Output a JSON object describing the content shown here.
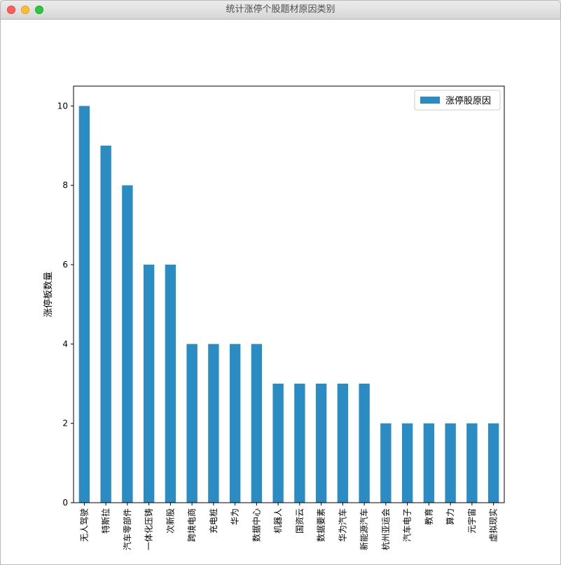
{
  "window": {
    "title": "统计涨停个股题材原因类别"
  },
  "colors": {
    "bar": "#2b8cc4",
    "axis": "#000000"
  },
  "chart_data": {
    "type": "bar",
    "title": "",
    "xlabel": "",
    "ylabel": "涨停板数量",
    "ylim": [
      0,
      10.5
    ],
    "yticks": [
      0,
      2,
      4,
      6,
      8,
      10
    ],
    "grid": false,
    "legend": {
      "position": "top-right",
      "entries": [
        "涨停股原因"
      ]
    },
    "categories": [
      "无人驾驶",
      "特斯拉",
      "汽车零部件",
      "一体化压铸",
      "次新股",
      "跨境电商",
      "充电桩",
      "华为",
      "数据中心",
      "机器人",
      "国资云",
      "数据要素",
      "华为汽车",
      "新能源汽车",
      "杭州亚运会",
      "汽车电子",
      "教育",
      "算力",
      "元宇宙",
      "虚拟现实"
    ],
    "series": [
      {
        "name": "涨停股原因",
        "values": [
          10,
          9,
          8,
          6,
          6,
          4,
          4,
          4,
          4,
          3,
          3,
          3,
          3,
          3,
          2,
          2,
          2,
          2,
          2,
          2
        ]
      }
    ]
  }
}
